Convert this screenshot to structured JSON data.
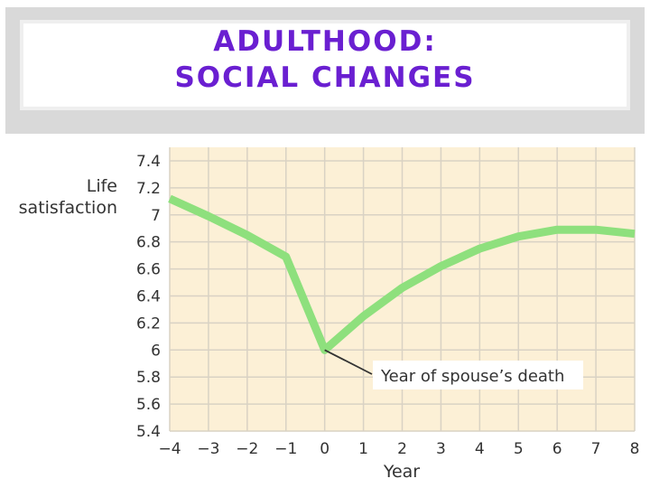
{
  "slide": {
    "title_line_1": "ADULTHOOD:",
    "title_line_2": "SOCIAL CHANGES"
  },
  "chart_data": {
    "type": "line",
    "title": "",
    "xlabel": "Year",
    "ylabel_line_1": "Life",
    "ylabel_line_2": "satisfaction",
    "x": [
      -4,
      -3,
      -2,
      -1,
      0,
      1,
      2,
      3,
      4,
      5,
      6,
      7,
      8
    ],
    "x_tick_labels": [
      "−4",
      "−3",
      "−2",
      "−1",
      "0",
      "1",
      "2",
      "3",
      "4",
      "5",
      "6",
      "7",
      "8"
    ],
    "y_ticks": [
      5.4,
      5.6,
      5.8,
      6,
      6.2,
      6.4,
      6.6,
      6.8,
      7,
      7.2,
      7.4
    ],
    "y_tick_labels": [
      "5.4",
      "5.6",
      "5.8",
      "6",
      "6.2",
      "6.4",
      "6.6",
      "6.8",
      "7",
      "7.2",
      "7.4"
    ],
    "xlim": [
      -4,
      8
    ],
    "ylim": [
      5.4,
      7.5
    ],
    "grid": true,
    "series": [
      {
        "values": [
          7.12,
          6.99,
          6.85,
          6.69,
          6.0,
          6.25,
          6.46,
          6.62,
          6.75,
          6.84,
          6.89,
          6.89,
          6.86
        ],
        "color": "#8ee07d"
      }
    ],
    "annotation": {
      "text": "Year of spouse’s death",
      "point_x": 0,
      "point_y": 6.0
    },
    "colors": {
      "plot_background": "#fcf0d6",
      "grid": "#d9d2c4",
      "line": "#8ee07d"
    }
  }
}
